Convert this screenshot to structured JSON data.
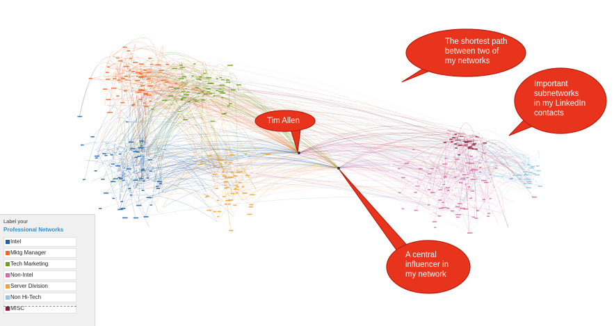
{
  "legend": {
    "heading": "Label your",
    "subheading": "Professional Networks",
    "items": [
      {
        "label": "Intel",
        "color": "#1f5fa8"
      },
      {
        "label": "Mktg Manager",
        "color": "#f26522"
      },
      {
        "label": "Tech Marketing",
        "color": "#6aa121"
      },
      {
        "label": "Non-Intel",
        "color": "#d86aa6"
      },
      {
        "label": "Server Division",
        "color": "#f2a134"
      },
      {
        "label": "Non Hi-Tech",
        "color": "#8fc6e3"
      },
      {
        "label": "MISC",
        "color": "#8b1a3a"
      }
    ]
  },
  "annotations": [
    {
      "id": "shortest-path",
      "lines": [
        "The shortest path",
        "between two of",
        "my networks"
      ]
    },
    {
      "id": "subnetworks",
      "lines": [
        "Important",
        "subnetworks",
        "in my LinkedIn",
        "contacts"
      ]
    },
    {
      "id": "tim-allen",
      "lines": [
        "Tim Allen"
      ]
    },
    {
      "id": "central-influencer",
      "lines": [
        "A central",
        "influencer in",
        "my network"
      ]
    }
  ],
  "callout_color": "#e8341c",
  "callout_border": "#b71c0c"
}
